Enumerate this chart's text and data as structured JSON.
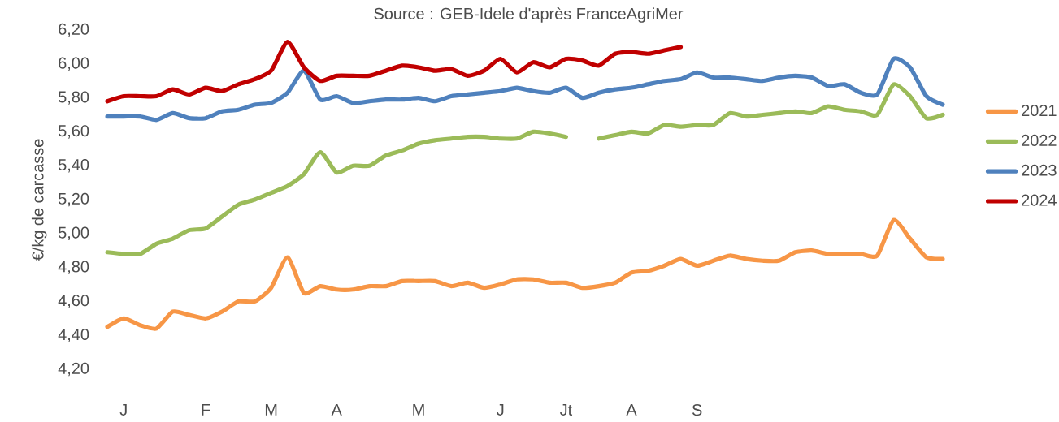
{
  "chart_data": {
    "type": "line",
    "annotations": [
      "Source : GEB-Idele d'après FranceAgriMer"
    ],
    "ylabel": "€/kg de carcasse",
    "categories": [
      null,
      "J",
      null,
      null,
      null,
      null,
      "F",
      null,
      null,
      null,
      "M",
      null,
      null,
      null,
      "A",
      null,
      null,
      null,
      null,
      "M",
      null,
      null,
      null,
      null,
      "J",
      null,
      null,
      null,
      "Jt",
      null,
      null,
      null,
      "A",
      null,
      null,
      null,
      "S",
      null,
      null,
      null,
      null,
      null,
      null,
      null,
      null,
      null,
      null,
      null,
      null,
      null,
      null,
      null
    ],
    "ylim": [
      4.2,
      6.2
    ],
    "yticks": [
      {
        "value": 4.2,
        "label": "4,20"
      },
      {
        "value": 4.4,
        "label": "4,40"
      },
      {
        "value": 4.6,
        "label": "4,60"
      },
      {
        "value": 4.8,
        "label": "4,80"
      },
      {
        "value": 5.0,
        "label": "5,00"
      },
      {
        "value": 5.2,
        "label": "5,20"
      },
      {
        "value": 5.4,
        "label": "5,40"
      },
      {
        "value": 5.6,
        "label": "5,60"
      },
      {
        "value": 5.8,
        "label": "5,80"
      },
      {
        "value": 6.0,
        "label": "6,00"
      },
      {
        "value": 6.2,
        "label": "6,20"
      }
    ],
    "legend": "right",
    "grid": false,
    "marker": "none",
    "line_style": "solid",
    "series": [
      {
        "name": "2021",
        "color": "#f79646",
        "values": [
          4.45,
          4.5,
          4.46,
          4.44,
          4.54,
          4.52,
          4.5,
          4.54,
          4.6,
          4.6,
          4.68,
          4.86,
          4.65,
          4.69,
          4.67,
          4.67,
          4.69,
          4.69,
          4.72,
          4.72,
          4.72,
          4.69,
          4.71,
          4.68,
          4.7,
          4.73,
          4.73,
          4.71,
          4.71,
          4.68,
          4.69,
          4.71,
          4.77,
          4.78,
          4.81,
          4.85,
          4.81,
          4.84,
          4.87,
          4.85,
          4.84,
          4.84,
          4.89,
          4.9,
          4.88,
          4.88,
          4.88,
          4.87,
          5.08,
          4.97,
          4.86,
          4.85
        ]
      },
      {
        "name": "2022",
        "color": "#9bbb59",
        "values": [
          4.89,
          4.88,
          4.88,
          4.94,
          4.97,
          5.02,
          5.03,
          5.1,
          5.17,
          5.2,
          5.24,
          5.28,
          5.35,
          5.48,
          5.36,
          5.4,
          5.4,
          5.46,
          5.49,
          5.53,
          5.55,
          5.56,
          5.57,
          5.57,
          5.56,
          5.56,
          5.6,
          5.59,
          5.57,
          null,
          5.56,
          5.58,
          5.6,
          5.59,
          5.64,
          5.63,
          5.64,
          5.64,
          5.71,
          5.69,
          5.7,
          5.71,
          5.72,
          5.71,
          5.75,
          5.73,
          5.72,
          5.7,
          5.88,
          5.81,
          5.68,
          5.7
        ]
      },
      {
        "name": "2023",
        "color": "#4f81bd",
        "values": [
          5.69,
          5.69,
          5.69,
          5.67,
          5.71,
          5.68,
          5.68,
          5.72,
          5.73,
          5.76,
          5.77,
          5.83,
          5.96,
          5.79,
          5.81,
          5.77,
          5.78,
          5.79,
          5.79,
          5.8,
          5.78,
          5.81,
          5.82,
          5.83,
          5.84,
          5.86,
          5.84,
          5.83,
          5.86,
          5.8,
          5.83,
          5.85,
          5.86,
          5.88,
          5.9,
          5.91,
          5.95,
          5.92,
          5.92,
          5.91,
          5.9,
          5.92,
          5.93,
          5.92,
          5.87,
          5.88,
          5.83,
          5.82,
          6.03,
          5.98,
          5.81,
          5.76
        ]
      },
      {
        "name": "2024",
        "color": "#c00000",
        "values": [
          5.78,
          5.81,
          5.81,
          5.81,
          5.85,
          5.82,
          5.86,
          5.84,
          5.88,
          5.91,
          5.96,
          6.13,
          5.98,
          5.9,
          5.93,
          5.93,
          5.93,
          5.96,
          5.99,
          5.98,
          5.96,
          5.97,
          5.93,
          5.96,
          6.03,
          5.95,
          6.01,
          5.98,
          6.03,
          6.02,
          5.99,
          6.06,
          6.07,
          6.06,
          6.08,
          6.1,
          null,
          null,
          null,
          null,
          null,
          null,
          null,
          null,
          null,
          null,
          null,
          null,
          null,
          null,
          null,
          null
        ]
      }
    ]
  }
}
